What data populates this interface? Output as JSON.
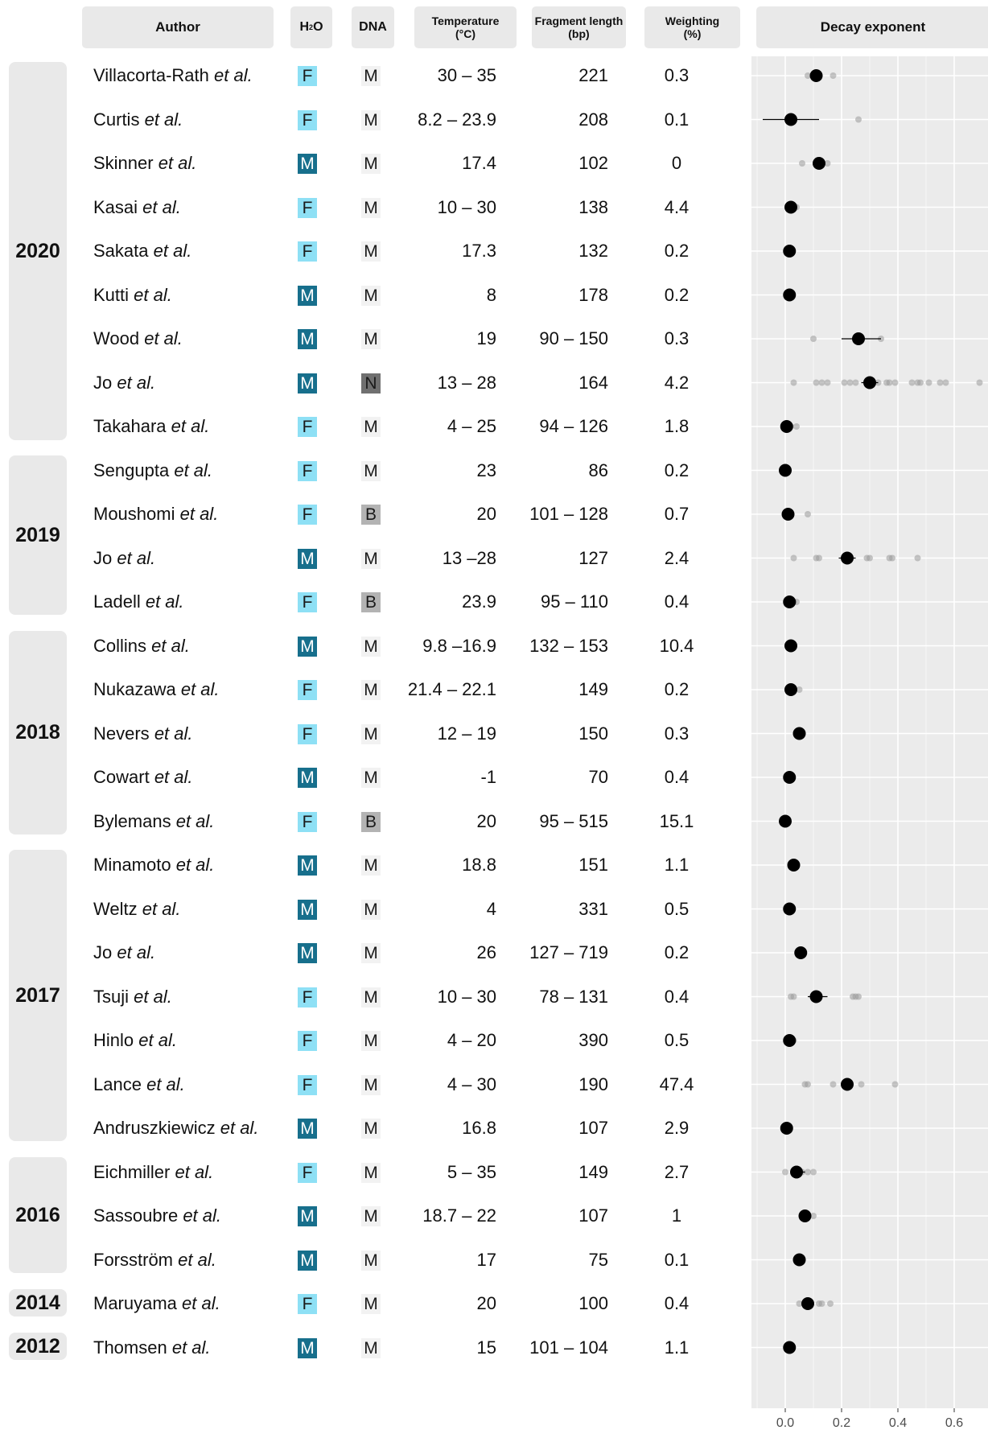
{
  "headers": {
    "author": "Author",
    "h2o_main": "H",
    "h2o_sub": "2",
    "h2o_end": "O",
    "dna": "DNA",
    "temp_l1": "Temperature",
    "temp_l2": "(°C)",
    "frag_l1": "Fragment length",
    "frag_l2": "(bp)",
    "weight_l1": "Weighting",
    "weight_l2": "(%)",
    "decay": "Decay exponent"
  },
  "years": [
    "2020",
    "2019",
    "2018",
    "2017",
    "2016",
    "2014",
    "2012"
  ],
  "etal": "et al.",
  "rows": [
    {
      "author": "Villacorta-Rath",
      "h2o": "F",
      "dna": "M",
      "temp": "30 – 35",
      "frag": "221",
      "weight": "0.3"
    },
    {
      "author": "Curtis",
      "h2o": "F",
      "dna": "M",
      "temp": "8.2 – 23.9",
      "frag": "208",
      "weight": "0.1"
    },
    {
      "author": "Skinner",
      "h2o": "M",
      "dna": "M",
      "temp": "17.4",
      "frag": "102",
      "weight": "0"
    },
    {
      "author": "Kasai",
      "h2o": "F",
      "dna": "M",
      "temp": "10 – 30",
      "frag": "138",
      "weight": "4.4"
    },
    {
      "author": "Sakata",
      "h2o": "F",
      "dna": "M",
      "temp": "17.3",
      "frag": "132",
      "weight": "0.2"
    },
    {
      "author": "Kutti",
      "h2o": "M",
      "dna": "M",
      "temp": "8",
      "frag": "178",
      "weight": "0.2"
    },
    {
      "author": "Wood",
      "h2o": "M",
      "dna": "M",
      "temp": "19",
      "frag": "90 – 150",
      "weight": "0.3"
    },
    {
      "author": "Jo",
      "h2o": "M",
      "dna": "N",
      "temp": "13 – 28",
      "frag": "164",
      "weight": "4.2"
    },
    {
      "author": "Takahara",
      "h2o": "F",
      "dna": "M",
      "temp": "4 – 25",
      "frag": "94 – 126",
      "weight": "1.8"
    },
    {
      "author": "Sengupta",
      "h2o": "F",
      "dna": "M",
      "temp": "23",
      "frag": "86",
      "weight": "0.2"
    },
    {
      "author": "Moushomi",
      "h2o": "F",
      "dna": "B",
      "temp": "20",
      "frag": "101 – 128",
      "weight": "0.7"
    },
    {
      "author": "Jo",
      "h2o": "M",
      "dna": "M",
      "temp": "13 –28",
      "frag": "127",
      "weight": "2.4"
    },
    {
      "author": "Ladell",
      "h2o": "F",
      "dna": "B",
      "temp": "23.9",
      "frag": "95 – 110",
      "weight": "0.4"
    },
    {
      "author": "Collins",
      "h2o": "M",
      "dna": "M",
      "temp": "9.8 –16.9",
      "frag": "132 – 153",
      "weight": "10.4"
    },
    {
      "author": "Nukazawa",
      "h2o": "F",
      "dna": "M",
      "temp": "21.4 – 22.1",
      "frag": "149",
      "weight": "0.2"
    },
    {
      "author": "Nevers",
      "h2o": "F",
      "dna": "M",
      "temp": "12 – 19",
      "frag": "150",
      "weight": "0.3"
    },
    {
      "author": "Cowart",
      "h2o": "M",
      "dna": "M",
      "temp": "-1",
      "frag": "70",
      "weight": "0.4"
    },
    {
      "author": "Bylemans",
      "h2o": "F",
      "dna": "B",
      "temp": "20",
      "frag": "95 – 515",
      "weight": "15.1"
    },
    {
      "author": "Minamoto",
      "h2o": "M",
      "dna": "M",
      "temp": "18.8",
      "frag": "151",
      "weight": "1.1"
    },
    {
      "author": "Weltz",
      "h2o": "M",
      "dna": "M",
      "temp": "4",
      "frag": "331",
      "weight": "0.5"
    },
    {
      "author": "Jo",
      "h2o": "M",
      "dna": "M",
      "temp": "26",
      "frag": "127 – 719",
      "weight": "0.2"
    },
    {
      "author": "Tsuji",
      "h2o": "F",
      "dna": "M",
      "temp": "10 – 30",
      "frag": "78 – 131",
      "weight": "0.4"
    },
    {
      "author": "Hinlo",
      "h2o": "F",
      "dna": "M",
      "temp": "4 – 20",
      "frag": "390",
      "weight": "0.5"
    },
    {
      "author": "Lance",
      "h2o": "F",
      "dna": "M",
      "temp": "4 – 30",
      "frag": "190",
      "weight": "47.4"
    },
    {
      "author": "Andruszkiewicz",
      "h2o": "M",
      "dna": "M",
      "temp": "16.8",
      "frag": "107",
      "weight": "2.9"
    },
    {
      "author": "Eichmiller",
      "h2o": "F",
      "dna": "M",
      "temp": "5 – 35",
      "frag": "149",
      "weight": "2.7"
    },
    {
      "author": "Sassoubre",
      "h2o": "M",
      "dna": "M",
      "temp": "18.7 – 22",
      "frag": "107",
      "weight": "1"
    },
    {
      "author": "Forsström",
      "h2o": "M",
      "dna": "M",
      "temp": "17",
      "frag": "75",
      "weight": "0.1"
    },
    {
      "author": "Maruyama",
      "h2o": "F",
      "dna": "M",
      "temp": "20",
      "frag": "100",
      "weight": "0.4"
    },
    {
      "author": "Thomsen",
      "h2o": "M",
      "dna": "M",
      "temp": "15",
      "frag": "101 – 104",
      "weight": "1.1"
    }
  ],
  "chart_data": {
    "type": "scatter",
    "title": "Decay exponent",
    "xlabel": "",
    "ylabel": "",
    "xlim": [
      -0.12,
      0.72
    ],
    "x_ticks": [
      0.0,
      0.2,
      0.4,
      0.6
    ],
    "x_tick_labels": [
      "0.0",
      "0.2",
      "0.4",
      "0.6"
    ],
    "grid": true,
    "colors": {
      "panel": "#ebebeb",
      "grid": "#ffffff",
      "estimate": "#000000",
      "individual": "#999999"
    },
    "series": [
      {
        "values": [
          {
            "mean": 0.11,
            "lo": 0.09,
            "hi": 0.13,
            "pts": [
              0.08,
              0.11,
              0.17
            ]
          },
          {
            "mean": 0.02,
            "lo": -0.08,
            "hi": 0.12,
            "pts": [
              0.01,
              0.26
            ]
          },
          {
            "mean": 0.12,
            "lo": 0.11,
            "hi": 0.14,
            "pts": [
              0.06,
              0.12,
              0.15
            ]
          },
          {
            "mean": 0.02,
            "lo": 0.015,
            "hi": 0.03,
            "pts": [
              0.01,
              0.02,
              0.03,
              0.04
            ]
          },
          {
            "mean": 0.015,
            "lo": null,
            "hi": null,
            "pts": [
              0.01,
              0.02
            ]
          },
          {
            "mean": 0.015,
            "lo": null,
            "hi": null,
            "pts": [
              0.01,
              0.02
            ]
          },
          {
            "mean": 0.26,
            "lo": 0.2,
            "hi": 0.34,
            "pts": [
              0.1,
              0.34
            ]
          },
          {
            "mean": 0.3,
            "lo": 0.27,
            "hi": 0.33,
            "pts": [
              0.03,
              0.11,
              0.13,
              0.15,
              0.21,
              0.23,
              0.25,
              0.29,
              0.33,
              0.36,
              0.37,
              0.39,
              0.45,
              0.47,
              0.48,
              0.51,
              0.55,
              0.57,
              0.69
            ]
          },
          {
            "mean": 0.005,
            "lo": 0.0,
            "hi": 0.01,
            "pts": [
              0.02,
              0.04
            ]
          },
          {
            "mean": 0.0,
            "lo": null,
            "hi": null,
            "pts": [
              0.0
            ]
          },
          {
            "mean": 0.01,
            "lo": null,
            "hi": null,
            "pts": [
              0.01,
              0.08
            ]
          },
          {
            "mean": 0.22,
            "lo": 0.19,
            "hi": 0.25,
            "pts": [
              0.03,
              0.11,
              0.12,
              0.23,
              0.29,
              0.3,
              0.37,
              0.38,
              0.47
            ]
          },
          {
            "mean": 0.015,
            "lo": 0.01,
            "hi": 0.03,
            "pts": [
              0.01,
              0.03,
              0.04
            ]
          },
          {
            "mean": 0.02,
            "lo": null,
            "hi": null,
            "pts": [
              0.02
            ]
          },
          {
            "mean": 0.02,
            "lo": 0.015,
            "hi": 0.03,
            "pts": [
              0.03,
              0.05
            ]
          },
          {
            "mean": 0.05,
            "lo": null,
            "hi": null,
            "pts": [
              0.05
            ]
          },
          {
            "mean": 0.015,
            "lo": null,
            "hi": null,
            "pts": [
              0.01,
              0.02
            ]
          },
          {
            "mean": 0.0,
            "lo": null,
            "hi": null,
            "pts": [
              0.0
            ]
          },
          {
            "mean": 0.03,
            "lo": null,
            "hi": null,
            "pts": [
              0.03
            ]
          },
          {
            "mean": 0.015,
            "lo": null,
            "hi": null,
            "pts": [
              0.01,
              0.02
            ]
          },
          {
            "mean": 0.055,
            "lo": null,
            "hi": null,
            "pts": [
              0.055
            ]
          },
          {
            "mean": 0.11,
            "lo": 0.08,
            "hi": 0.15,
            "pts": [
              0.02,
              0.03,
              0.1,
              0.12,
              0.24,
              0.25,
              0.26
            ]
          },
          {
            "mean": 0.015,
            "lo": 0.01,
            "hi": 0.025,
            "pts": [
              0.01,
              0.03
            ]
          },
          {
            "mean": 0.22,
            "lo": 0.21,
            "hi": 0.235,
            "pts": [
              0.07,
              0.08,
              0.17,
              0.27,
              0.39
            ]
          },
          {
            "mean": 0.005,
            "lo": null,
            "hi": null,
            "pts": [
              0.005
            ]
          },
          {
            "mean": 0.04,
            "lo": 0.02,
            "hi": 0.07,
            "pts": [
              0.0,
              0.03,
              0.06,
              0.08,
              0.1
            ]
          },
          {
            "mean": 0.07,
            "lo": 0.06,
            "hi": 0.08,
            "pts": [
              0.06,
              0.1
            ]
          },
          {
            "mean": 0.05,
            "lo": null,
            "hi": null,
            "pts": [
              0.05
            ]
          },
          {
            "mean": 0.08,
            "lo": 0.07,
            "hi": 0.09,
            "pts": [
              0.05,
              0.09,
              0.12,
              0.13,
              0.16
            ]
          },
          {
            "mean": 0.015,
            "lo": null,
            "hi": null,
            "pts": [
              0.015
            ]
          }
        ]
      }
    ]
  }
}
